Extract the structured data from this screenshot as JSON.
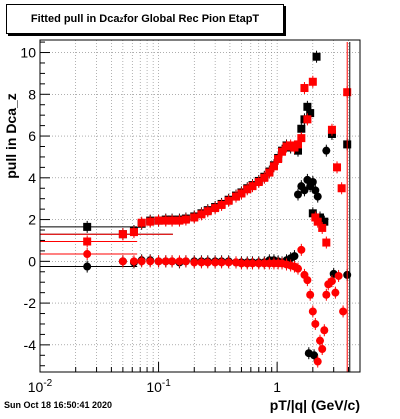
{
  "title": {
    "prefix": "Fitted pull in Dca",
    "subscript": "z",
    "suffix": " for Global Rec Pion EtapT"
  },
  "timestamp": "Sun Oct 18 16:50:41 2020",
  "colors": {
    "black": "#000000",
    "red": "#ff0000",
    "grid": "#7f7f7f"
  },
  "chart_data": {
    "type": "scatter",
    "title": "Fitted pull in Dca_z for Global Rec Pion EtapT",
    "xlabel": "pT/|q| (GeV/c)",
    "ylabel": "pull in Dca_z",
    "xscale": "log",
    "xlim": [
      0.01,
      5.0
    ],
    "ylim": [
      -5.3,
      10.6
    ],
    "grid": true,
    "x_ticks": [
      {
        "value": 0.01,
        "base": "10",
        "exp": "-2"
      },
      {
        "value": 0.1,
        "base": "10",
        "exp": "-1"
      },
      {
        "value": 1,
        "base": "1",
        "exp": ""
      }
    ],
    "y_ticks": [
      -4,
      -2,
      0,
      2,
      4,
      6,
      8,
      10
    ],
    "series": [
      {
        "color": "#000000",
        "marker": "square",
        "points": [
          [
            0.025,
            1.65
          ],
          [
            0.05,
            1.3
          ],
          [
            0.062,
            1.45
          ],
          [
            0.072,
            1.8
          ],
          [
            0.085,
            1.95
          ],
          [
            0.1,
            1.95
          ],
          [
            0.115,
            2.0
          ],
          [
            0.13,
            2.0
          ],
          [
            0.15,
            2.0
          ],
          [
            0.17,
            2.05
          ],
          [
            0.2,
            2.15
          ],
          [
            0.23,
            2.3
          ],
          [
            0.26,
            2.45
          ],
          [
            0.3,
            2.6
          ],
          [
            0.34,
            2.75
          ],
          [
            0.39,
            2.95
          ],
          [
            0.45,
            3.15
          ],
          [
            0.5,
            3.3
          ],
          [
            0.56,
            3.5
          ],
          [
            0.62,
            3.65
          ],
          [
            0.7,
            3.85
          ],
          [
            0.78,
            4.05
          ],
          [
            0.86,
            4.3
          ],
          [
            0.94,
            4.6
          ],
          [
            1.02,
            4.95
          ],
          [
            1.1,
            5.3
          ],
          [
            1.2,
            5.55
          ],
          [
            1.3,
            5.45
          ],
          [
            1.4,
            5.5
          ],
          [
            1.5,
            5.3
          ],
          [
            1.6,
            6.35
          ],
          [
            1.7,
            6.8
          ],
          [
            1.8,
            7.4
          ],
          [
            1.9,
            7.1
          ],
          [
            2.0,
            2.3
          ],
          [
            2.15,
            9.8
          ],
          [
            2.3,
            2.1
          ],
          [
            2.5,
            1.9
          ],
          [
            2.9,
            6.1
          ],
          [
            3.9,
            5.6
          ]
        ],
        "xerr_points": [
          [
            0.025,
            1.65
          ],
          [
            0.05,
            1.3
          ]
        ]
      },
      {
        "color": "#ff0000",
        "marker": "square",
        "points": [
          [
            0.025,
            0.95
          ],
          [
            0.05,
            1.3
          ],
          [
            0.062,
            1.4
          ],
          [
            0.072,
            1.85
          ],
          [
            0.085,
            1.9
          ],
          [
            0.1,
            1.95
          ],
          [
            0.115,
            1.95
          ],
          [
            0.13,
            1.95
          ],
          [
            0.15,
            1.95
          ],
          [
            0.17,
            2.0
          ],
          [
            0.2,
            2.1
          ],
          [
            0.23,
            2.25
          ],
          [
            0.26,
            2.4
          ],
          [
            0.3,
            2.55
          ],
          [
            0.34,
            2.7
          ],
          [
            0.39,
            2.9
          ],
          [
            0.45,
            3.1
          ],
          [
            0.5,
            3.25
          ],
          [
            0.56,
            3.45
          ],
          [
            0.62,
            3.6
          ],
          [
            0.7,
            3.8
          ],
          [
            0.78,
            4.0
          ],
          [
            0.86,
            4.25
          ],
          [
            0.94,
            4.55
          ],
          [
            1.02,
            4.9
          ],
          [
            1.1,
            5.25
          ],
          [
            1.2,
            5.5
          ],
          [
            1.3,
            5.55
          ],
          [
            1.4,
            5.45
          ],
          [
            1.5,
            5.6
          ],
          [
            1.6,
            5.9
          ],
          [
            1.7,
            8.3
          ],
          [
            1.8,
            6.8
          ],
          [
            2.0,
            8.6
          ],
          [
            2.1,
            2.1
          ],
          [
            2.2,
            1.9
          ],
          [
            2.4,
            1.6
          ],
          [
            2.6,
            0.9
          ],
          [
            2.9,
            6.3
          ],
          [
            3.2,
            4.5
          ],
          [
            3.5,
            3.5
          ],
          [
            3.9,
            8.1
          ]
        ],
        "xerr_points": [
          [
            0.025,
            0.95
          ],
          [
            0.05,
            1.3
          ]
        ]
      },
      {
        "color": "#000000",
        "marker": "circle",
        "points": [
          [
            0.025,
            -0.25
          ],
          [
            0.05,
            0.0
          ],
          [
            0.062,
            -0.05
          ],
          [
            0.072,
            0.05
          ],
          [
            0.085,
            0.05
          ],
          [
            0.1,
            0.0
          ],
          [
            0.115,
            0.0
          ],
          [
            0.13,
            0.0
          ],
          [
            0.15,
            -0.05
          ],
          [
            0.17,
            0.0
          ],
          [
            0.2,
            0.0
          ],
          [
            0.23,
            0.0
          ],
          [
            0.26,
            0.0
          ],
          [
            0.3,
            0.0
          ],
          [
            0.34,
            0.0
          ],
          [
            0.39,
            0.0
          ],
          [
            0.45,
            -0.05
          ],
          [
            0.5,
            -0.05
          ],
          [
            0.56,
            -0.05
          ],
          [
            0.62,
            -0.05
          ],
          [
            0.7,
            -0.05
          ],
          [
            0.78,
            -0.05
          ],
          [
            0.86,
            0.05
          ],
          [
            0.94,
            0.05
          ],
          [
            1.02,
            0.0
          ],
          [
            1.1,
            -0.05
          ],
          [
            1.2,
            0.05
          ],
          [
            1.3,
            0.15
          ],
          [
            1.4,
            0.25
          ],
          [
            1.5,
            3.2
          ],
          [
            1.6,
            3.6
          ],
          [
            1.7,
            3.4
          ],
          [
            1.8,
            3.9
          ],
          [
            1.9,
            3.6
          ],
          [
            2.0,
            3.8
          ],
          [
            2.1,
            3.4
          ],
          [
            2.2,
            3.1
          ],
          [
            2.6,
            5.3
          ],
          [
            3.0,
            -0.6
          ],
          [
            3.9,
            -0.65
          ],
          [
            1.85,
            -4.4
          ],
          [
            2.05,
            -4.5
          ]
        ],
        "xerr_points": [
          [
            0.025,
            -0.25
          ]
        ]
      },
      {
        "color": "#ff0000",
        "marker": "circle",
        "points": [
          [
            0.025,
            0.35
          ],
          [
            0.05,
            0.0
          ],
          [
            0.062,
            0.0
          ],
          [
            0.072,
            0.0
          ],
          [
            0.085,
            0.0
          ],
          [
            0.1,
            0.0
          ],
          [
            0.115,
            0.0
          ],
          [
            0.13,
            0.0
          ],
          [
            0.15,
            0.0
          ],
          [
            0.17,
            0.0
          ],
          [
            0.2,
            -0.05
          ],
          [
            0.23,
            -0.05
          ],
          [
            0.26,
            -0.05
          ],
          [
            0.3,
            -0.05
          ],
          [
            0.34,
            -0.05
          ],
          [
            0.39,
            -0.05
          ],
          [
            0.45,
            -0.05
          ],
          [
            0.5,
            -0.1
          ],
          [
            0.56,
            -0.1
          ],
          [
            0.62,
            -0.1
          ],
          [
            0.7,
            -0.1
          ],
          [
            0.78,
            -0.1
          ],
          [
            0.86,
            -0.1
          ],
          [
            0.94,
            -0.1
          ],
          [
            1.02,
            -0.1
          ],
          [
            1.1,
            -0.1
          ],
          [
            1.2,
            -0.15
          ],
          [
            1.3,
            -0.2
          ],
          [
            1.4,
            -0.25
          ],
          [
            1.5,
            -0.35
          ],
          [
            1.6,
            0.55
          ],
          [
            1.7,
            -0.65
          ],
          [
            1.8,
            -0.9
          ],
          [
            1.9,
            -1.6
          ],
          [
            2.0,
            -2.4
          ],
          [
            2.1,
            -3.0
          ],
          [
            2.2,
            -4.8
          ],
          [
            2.3,
            -3.8
          ],
          [
            2.4,
            -4.2
          ],
          [
            2.5,
            -3.3
          ],
          [
            2.6,
            -1.6
          ],
          [
            2.7,
            -1.1
          ],
          [
            2.9,
            -0.95
          ],
          [
            3.1,
            -1.5
          ],
          [
            3.3,
            -0.7
          ],
          [
            3.6,
            -2.4
          ]
        ],
        "xerr_points": [
          [
            0.025,
            0.35
          ]
        ]
      }
    ]
  }
}
